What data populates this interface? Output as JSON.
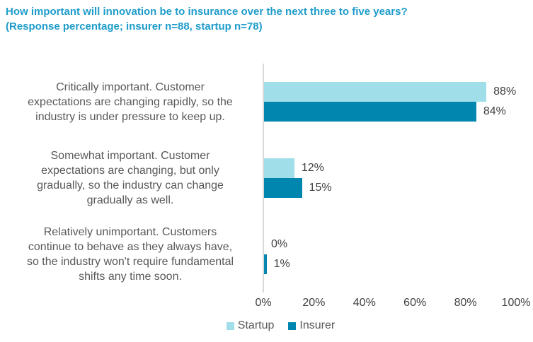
{
  "title": {
    "line1": "How important will innovation be to insurance over the next three to five years?",
    "line2": "(Response percentage; insurer n=88, startup n=78)"
  },
  "colors": {
    "title_text": "#1E9CCA",
    "category_text": "#595959",
    "value_text": "#404040",
    "tick_text": "#404040",
    "legend_text": "#595959",
    "axis_line": "#D9D9D9",
    "startup": "#A0DFE9",
    "insurer": "#0086AF"
  },
  "chart_data": {
    "type": "bar",
    "orientation": "horizontal",
    "title": "How important will innovation be to insurance over the next three to five years? (Response percentage; insurer n=88, startup n=78)",
    "categories": [
      "Critically important. Customer\nexpectations are changing rapidly, so the\nindustry is under pressure to keep up.",
      "Somewhat important. Customer\nexpectations are changing, but only\ngradually, so the industry can change\ngradually as well.",
      "Relatively unimportant. Customers\ncontinue to behave as they always have,\nso the industry won't require fundamental\nshifts any time soon."
    ],
    "series": [
      {
        "name": "Startup",
        "color": "#A0DFE9",
        "values": [
          88,
          12,
          0
        ],
        "labels": [
          "88%",
          "12%",
          "0%"
        ]
      },
      {
        "name": "Insurer",
        "color": "#0086AF",
        "values": [
          84,
          15,
          1
        ],
        "labels": [
          "84%",
          "15%",
          "1%"
        ]
      }
    ],
    "xlabel": "",
    "ylabel": "",
    "xlim": [
      0,
      100
    ],
    "xticks": [
      "0%",
      "20%",
      "40%",
      "60%",
      "80%",
      "100%"
    ],
    "grid": false,
    "legend_position": "bottom"
  }
}
